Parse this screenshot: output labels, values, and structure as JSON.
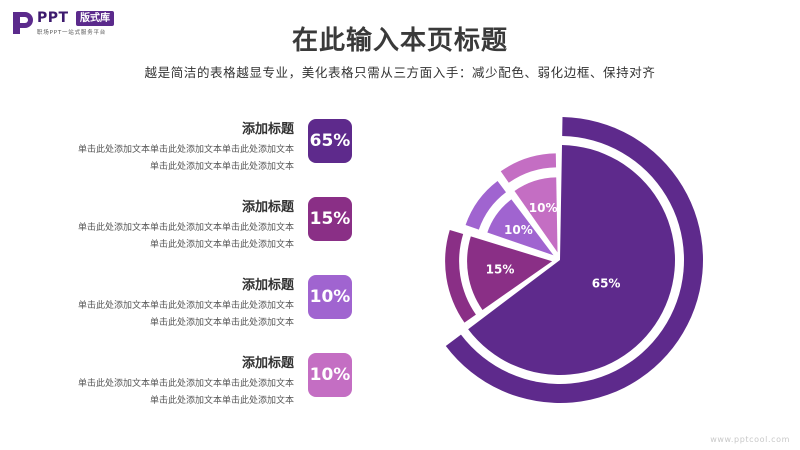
{
  "logo": {
    "mark": "P",
    "text": "PPT",
    "badge": "版式库",
    "tagline": "职场PPT一站式服务平台"
  },
  "header": {
    "title": "在此输入本页标题",
    "subtitle": "越是简洁的表格越显专业，美化表格只需从三方面入手：减少配色、弱化边框、保持对齐"
  },
  "items": [
    {
      "title": "添加标题",
      "line1": "单击此处添加文本单击此处添加文本单击此处添加文本",
      "line2": "单击此处添加文本单击此处添加文本",
      "value": "65%",
      "color": "#5e2a8c"
    },
    {
      "title": "添加标题",
      "line1": "单击此处添加文本单击此处添加文本单击此处添加文本",
      "line2": "单击此处添加文本单击此处添加文本",
      "value": "15%",
      "color": "#8a2f86"
    },
    {
      "title": "添加标题",
      "line1": "单击此处添加文本单击此处添加文本单击此处添加文本",
      "line2": "单击此处添加文本单击此处添加文本",
      "value": "10%",
      "color": "#a064d0"
    },
    {
      "title": "添加标题",
      "line1": "单击此处添加文本单击此处添加文本单击此处添加文本",
      "line2": "单击此处添加文本单击此处添加文本",
      "value": "10%",
      "color": "#c46ec3"
    }
  ],
  "chart_data": {
    "type": "pie",
    "categories": [
      "",
      "",
      "",
      ""
    ],
    "values": [
      65,
      15,
      10,
      10
    ],
    "labels": [
      "65%",
      "15%",
      "10%",
      "10%"
    ],
    "colors": [
      "#5e2a8c",
      "#8a2f86",
      "#a064d0",
      "#c46ec3"
    ],
    "grid": false,
    "legend": "none"
  },
  "watermark": "www.pptcool.com"
}
